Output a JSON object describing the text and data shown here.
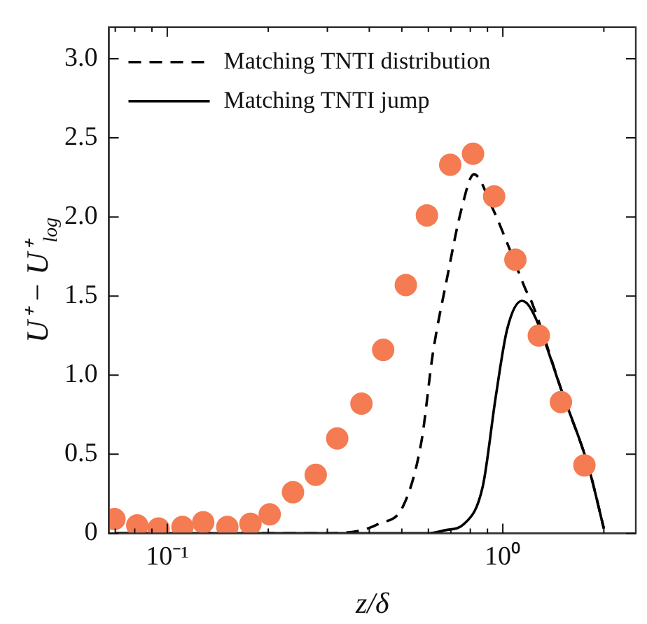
{
  "chart_data": {
    "type": "scatter",
    "xlabel": "z/δ",
    "ylabel": "U⁺ − U⁺$_{log}$",
    "log": "x",
    "grid": false,
    "legend": "top left",
    "xlim": [
      0.067,
      2.49
    ],
    "ylim": [
      0,
      3.2
    ],
    "xticks": [
      {
        "value": 0.07,
        "label": null
      },
      {
        "value": 0.08,
        "label": null
      },
      {
        "value": 0.09,
        "label": null
      },
      {
        "value": 0.1,
        "label": "10⁻¹"
      },
      {
        "value": 0.2,
        "label": null
      },
      {
        "value": 0.3,
        "label": null
      },
      {
        "value": 0.4,
        "label": null
      },
      {
        "value": 0.5,
        "label": null
      },
      {
        "value": 0.6,
        "label": null
      },
      {
        "value": 0.7,
        "label": null
      },
      {
        "value": 0.8,
        "label": null
      },
      {
        "value": 0.9,
        "label": null
      },
      {
        "value": 1,
        "label": "10⁰"
      },
      {
        "value": 2,
        "label": null
      }
    ],
    "yticks": [
      0,
      {
        "value": 0.5,
        "label": "0.5"
      },
      {
        "value": 1,
        "label": "1.0"
      },
      {
        "value": 1.5,
        "label": "1.5"
      },
      {
        "value": 2,
        "label": "2.0"
      },
      {
        "value": 2.5,
        "label": "2.5"
      },
      {
        "value": 3,
        "label": "3.0"
      }
    ],
    "series": [
      {
        "marker": "circle",
        "color": "#f47b52",
        "x": [
          0.0696,
          0.0814,
          0.0942,
          0.111,
          0.128,
          0.151,
          0.177,
          0.202,
          0.237,
          0.277,
          0.321,
          0.379,
          0.44,
          0.514,
          0.594,
          0.697,
          0.815,
          0.942,
          1.09,
          1.28,
          1.49,
          1.75
        ],
        "values": [
          0.09,
          0.05,
          0.03,
          0.04,
          0.07,
          0.04,
          0.06,
          0.12,
          0.26,
          0.37,
          0.6,
          0.82,
          1.16,
          1.57,
          2.01,
          2.33,
          2.4,
          2.13,
          1.73,
          1.25,
          0.83,
          0.43
        ]
      },
      {
        "type": "line",
        "name": "Matching TNTI distribution",
        "marker": "none",
        "line_style": "dashed",
        "color": "#000000",
        "x": [
          0.07,
          0.3,
          0.38,
          0.426,
          0.504,
          0.572,
          0.619,
          0.68,
          0.753,
          0.82,
          0.934,
          1.06,
          1.17,
          1.22,
          1.52,
          1.8,
          2.0
        ],
        "values": [
          0,
          0,
          0.02,
          0.06,
          0.17,
          0.58,
          1.14,
          1.6,
          2.05,
          2.27,
          2.05,
          1.77,
          1.54,
          1.46,
          0.86,
          0.42,
          0.03
        ]
      },
      {
        "type": "line",
        "name": "Matching TNTI jump",
        "marker": "none",
        "line_style": "solid",
        "color": "#000000",
        "x": [
          0.07,
          0.6,
          0.675,
          0.767,
          0.872,
          0.952,
          1.03,
          1.14,
          1.22,
          1.52,
          1.8,
          2.0
        ],
        "values": [
          0,
          0,
          0.02,
          0.06,
          0.3,
          0.86,
          1.29,
          1.47,
          1.41,
          0.86,
          0.42,
          0.03
        ]
      }
    ]
  }
}
